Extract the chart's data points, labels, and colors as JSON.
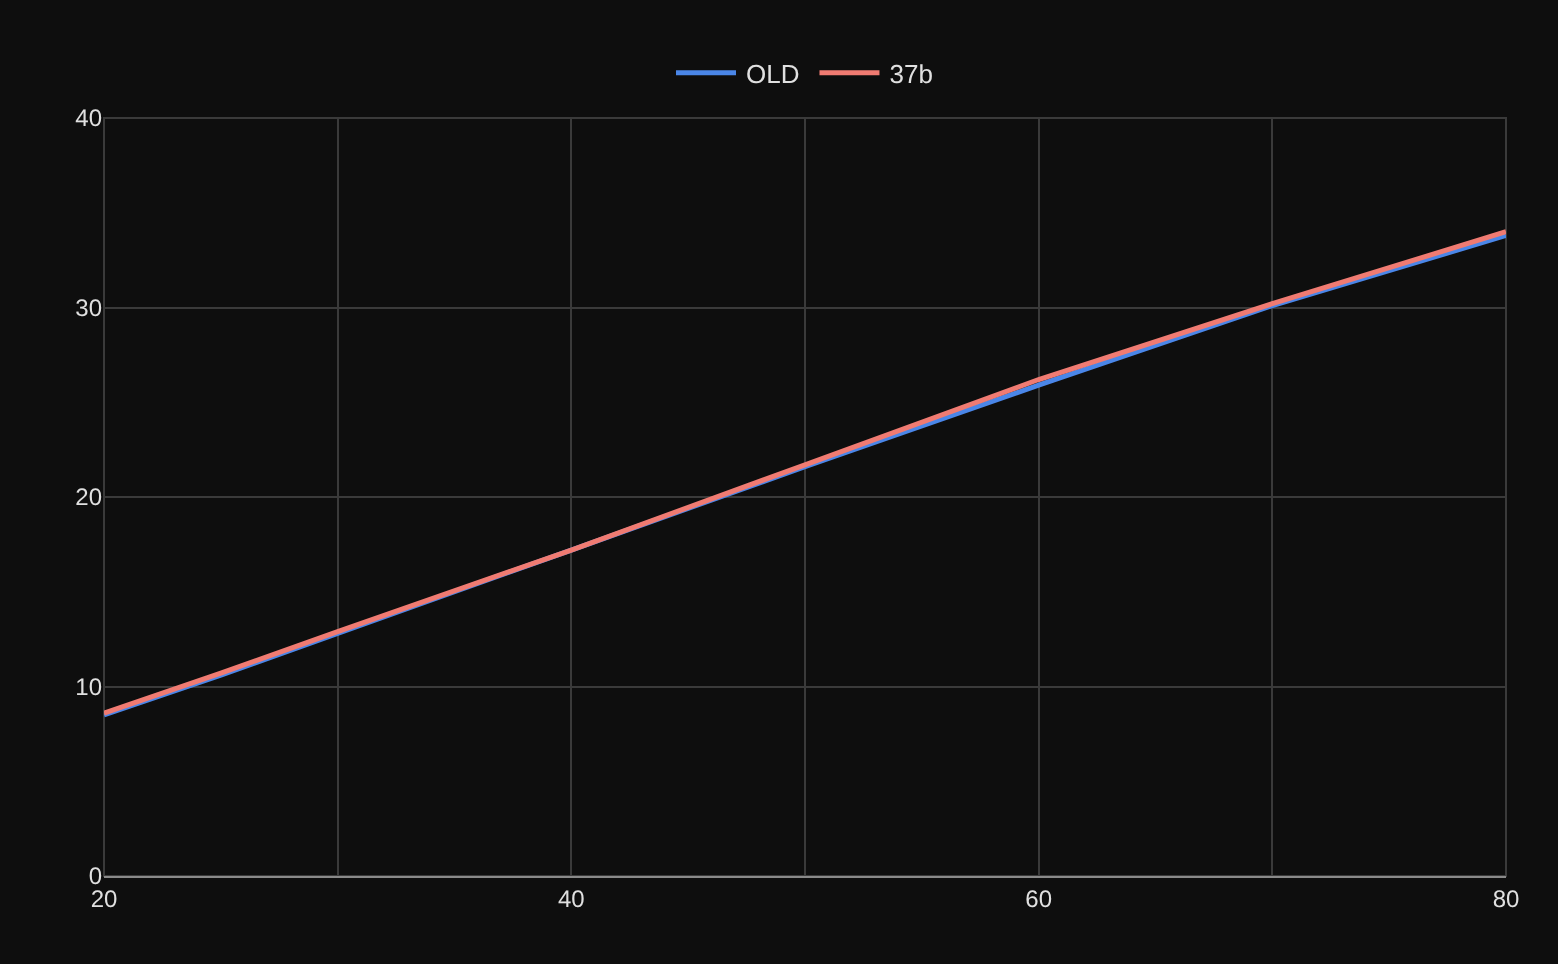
{
  "chart_data": {
    "type": "line",
    "x": [
      20,
      25,
      30,
      40,
      50,
      60,
      70,
      80
    ],
    "series": [
      {
        "name": "OLD",
        "color": "#4a86e8",
        "values": [
          8.5,
          10.6,
          12.8,
          17.2,
          21.6,
          25.9,
          30.1,
          33.8
        ]
      },
      {
        "name": "37b",
        "color": "#f07b72",
        "values": [
          8.6,
          10.7,
          12.9,
          17.2,
          21.7,
          26.2,
          30.2,
          34.0
        ]
      }
    ],
    "xlim": [
      20,
      80
    ],
    "xticks": [
      20,
      {
        "value": 30,
        "label": null
      },
      40,
      {
        "value": 50,
        "label": null
      },
      60,
      {
        "value": 70,
        "label": null
      },
      80
    ],
    "ylim": [
      0,
      40
    ],
    "yticks": [
      0,
      10,
      20,
      30,
      40
    ],
    "grid": true,
    "legend": "top",
    "marker": "none",
    "line_style": "solid"
  }
}
